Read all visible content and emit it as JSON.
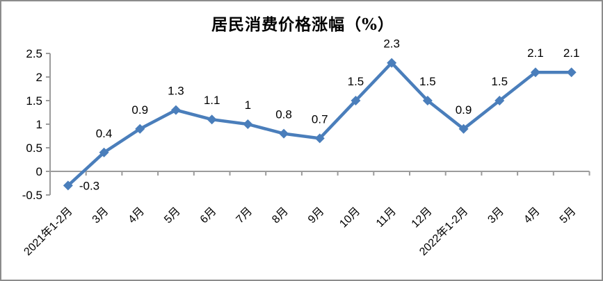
{
  "frame": {
    "background": "#FFFFFF",
    "border_color": "#8C8C8C"
  },
  "chart_data": {
    "type": "line",
    "title": "居民消费价格涨幅（%）",
    "xlabel": "",
    "ylabel": "",
    "categories": [
      "2021年1-2月",
      "3月",
      "4月",
      "5月",
      "6月",
      "7月",
      "8月",
      "9月",
      "10月",
      "11月",
      "12月",
      "2022年1-2月",
      "3月",
      "4月",
      "5月"
    ],
    "values": [
      -0.3,
      0.4,
      0.9,
      1.3,
      1.1,
      1,
      0.8,
      0.7,
      1.5,
      2.3,
      1.5,
      0.9,
      1.5,
      2.1,
      2.1
    ],
    "point_labels": [
      "-0.3",
      "0.4",
      "0.9",
      "1.3",
      "1.1",
      "1",
      "0.8",
      "0.7",
      "1.5",
      "2.3",
      "1.5",
      "0.9",
      "1.5",
      "2.1",
      "2.1"
    ],
    "y_ticks": [
      "2.5",
      "2",
      "1.5",
      "1",
      "0.5",
      "0",
      "-0.5"
    ],
    "ylim": [
      -0.5,
      2.5
    ],
    "grid": false,
    "legend": "none",
    "marker": "diamond",
    "label_position": "above",
    "series_color": "#4A7EBB",
    "axis_color": "#9B9B9B",
    "text_color": "#000000"
  }
}
